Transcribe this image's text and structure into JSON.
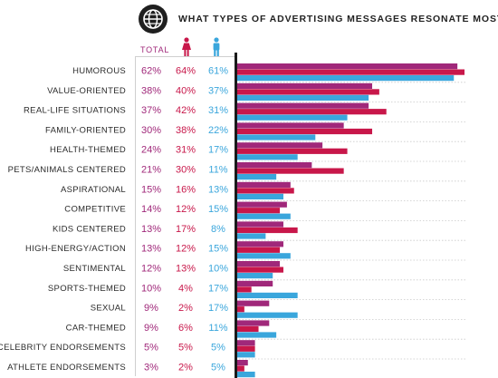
{
  "header": {
    "title": "WHAT TYPES OF ADVERTISING MESSAGES RESONATE MOST?",
    "total_label": "TOTAL",
    "globe_icon": "globe-icon",
    "female_icon": "female-icon",
    "male_icon": "male-icon"
  },
  "colors": {
    "total": "#a0287a",
    "female": "#c8174a",
    "male": "#3aa6dc"
  },
  "chart_data": {
    "type": "bar",
    "orientation": "horizontal",
    "categories": [
      "HUMOROUS",
      "VALUE-ORIENTED",
      "REAL-LIFE SITUATIONS",
      "FAMILY-ORIENTED",
      "HEALTH-THEMED",
      "PETS/ANIMALS CENTERED",
      "ASPIRATIONAL",
      "COMPETITIVE",
      "KIDS CENTERED",
      "HIGH-ENERGY/ACTION",
      "SENTIMENTAL",
      "SPORTS-THEMED",
      "SEXUAL",
      "CAR-THEMED",
      "CELEBRITY ENDORSEMENTS",
      "ATHLETE ENDORSEMENTS"
    ],
    "series": [
      {
        "name": "TOTAL",
        "values": [
          62,
          38,
          37,
          30,
          24,
          21,
          15,
          14,
          13,
          13,
          12,
          10,
          9,
          9,
          5,
          3
        ]
      },
      {
        "name": "Female",
        "values": [
          64,
          40,
          42,
          38,
          31,
          30,
          16,
          12,
          17,
          12,
          13,
          4,
          2,
          6,
          5,
          2
        ]
      },
      {
        "name": "Male",
        "values": [
          61,
          37,
          31,
          22,
          17,
          11,
          13,
          15,
          8,
          15,
          10,
          17,
          17,
          11,
          5,
          5
        ]
      }
    ],
    "value_labels": {
      "total": [
        "62%",
        "38%",
        "37%",
        "30%",
        "24%",
        "21%",
        "15%",
        "14%",
        "13%",
        "13%",
        "12%",
        "10%",
        "9%",
        "9%",
        "5%",
        "3%"
      ],
      "female": [
        "64%",
        "40%",
        "42%",
        "38%",
        "31%",
        "30%",
        "16%",
        "12%",
        "17%",
        "12%",
        "13%",
        "4%",
        "2%",
        "6%",
        "5%",
        "2%"
      ],
      "male": [
        "61%",
        "37%",
        "31%",
        "22%",
        "17%",
        "11%",
        "13%",
        "15%",
        "8%",
        "15%",
        "10%",
        "17%",
        "17%",
        "11%",
        "5%",
        "5%"
      ]
    },
    "xlim": [
      0,
      64
    ],
    "grid": false,
    "legend": "top"
  }
}
